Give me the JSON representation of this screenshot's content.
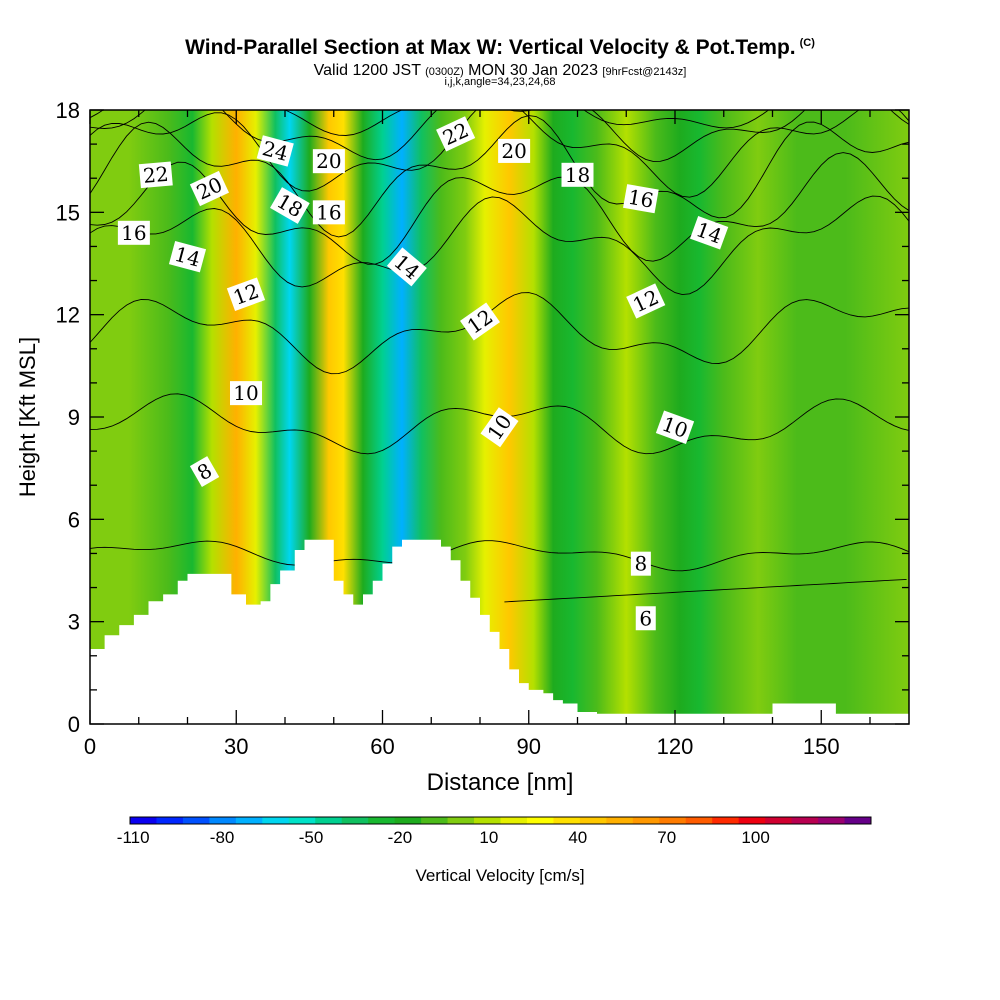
{
  "header": {
    "title": "Wind-Parallel Section at Max W: Vertical Velocity & Pot.Temp.",
    "title_tag": "(C)",
    "valid_main": "Valid 1200 JST",
    "valid_z": "(0300Z)",
    "valid_date": "MON 30 Jan 2023",
    "valid_fcst": "[9hrFcst@2143z]",
    "indices": "i,j,k,angle=34,23,24,68"
  },
  "chart_data": {
    "type": "heatmap",
    "xlabel": "Distance [nm]",
    "ylabel": "Height [Kft MSL]",
    "xlim": [
      0,
      168
    ],
    "ylim": [
      0,
      18
    ],
    "x_ticks": [
      "0",
      "30",
      "60",
      "90",
      "120",
      "150"
    ],
    "x_tick_values": [
      0,
      30,
      60,
      90,
      120,
      150
    ],
    "y_ticks": [
      "0",
      "3",
      "6",
      "9",
      "12",
      "15",
      "18"
    ],
    "y_tick_values": [
      0,
      3,
      6,
      9,
      12,
      15,
      18
    ],
    "colorbar": {
      "label": "Vertical Velocity [cm/s]",
      "tick_labels": [
        "-110",
        "-80",
        "-50",
        "-20",
        "10",
        "40",
        "70",
        "100"
      ],
      "tick_values": [
        -110,
        -80,
        -50,
        -20,
        10,
        40,
        70,
        100
      ],
      "range": [
        -120,
        130
      ],
      "step": 10,
      "colors": [
        "#0a00f0",
        "#0026ff",
        "#0050ff",
        "#0088ff",
        "#00b0ff",
        "#00d6f0",
        "#00e2c8",
        "#00d090",
        "#10c060",
        "#18b830",
        "#1eab1e",
        "#4cbb1a",
        "#80cc10",
        "#b4e000",
        "#e6f000",
        "#ffff00",
        "#ffe000",
        "#ffc800",
        "#ffb000",
        "#ff9800",
        "#ff7c00",
        "#ff5c00",
        "#ff2a00",
        "#ee0010",
        "#d00030",
        "#b80050",
        "#990070",
        "#660088"
      ]
    },
    "w_bands": [
      {
        "x": 0,
        "w": 0
      },
      {
        "x": 8,
        "w": 8
      },
      {
        "x": 16,
        "w": -8
      },
      {
        "x": 21,
        "w": -22
      },
      {
        "x": 25,
        "w": 12
      },
      {
        "x": 30,
        "w": 60
      },
      {
        "x": 34,
        "w": 25
      },
      {
        "x": 38,
        "w": -35
      },
      {
        "x": 41,
        "w": -70
      },
      {
        "x": 45,
        "w": -20
      },
      {
        "x": 49,
        "w": 55
      },
      {
        "x": 52,
        "w": 45
      },
      {
        "x": 56,
        "w": -20
      },
      {
        "x": 60,
        "w": -45
      },
      {
        "x": 64,
        "w": -75
      },
      {
        "x": 68,
        "w": -40
      },
      {
        "x": 72,
        "w": -10
      },
      {
        "x": 77,
        "w": 5
      },
      {
        "x": 81,
        "w": 25
      },
      {
        "x": 86,
        "w": 55
      },
      {
        "x": 91,
        "w": 15
      },
      {
        "x": 95,
        "w": -15
      },
      {
        "x": 99,
        "w": -28
      },
      {
        "x": 104,
        "w": -5
      },
      {
        "x": 110,
        "w": 12
      },
      {
        "x": 116,
        "w": -5
      },
      {
        "x": 121,
        "w": -18
      },
      {
        "x": 125,
        "w": -25
      },
      {
        "x": 130,
        "w": -8
      },
      {
        "x": 137,
        "w": 8
      },
      {
        "x": 145,
        "w": -5
      },
      {
        "x": 155,
        "w": -5
      },
      {
        "x": 168,
        "w": 2
      }
    ],
    "terrain": [
      [
        0,
        2.2
      ],
      [
        3,
        2.6
      ],
      [
        6,
        2.9
      ],
      [
        9,
        3.2
      ],
      [
        12,
        3.6
      ],
      [
        15,
        3.8
      ],
      [
        18,
        4.2
      ],
      [
        20,
        4.4
      ],
      [
        26,
        4.4
      ],
      [
        29,
        3.8
      ],
      [
        32,
        3.5
      ],
      [
        35,
        3.6
      ],
      [
        37,
        4.1
      ],
      [
        39,
        4.5
      ],
      [
        42,
        5.1
      ],
      [
        44,
        5.4
      ],
      [
        48,
        5.4
      ],
      [
        50,
        4.2
      ],
      [
        52,
        3.8
      ],
      [
        54,
        3.5
      ],
      [
        56,
        3.8
      ],
      [
        58,
        4.2
      ],
      [
        60,
        4.7
      ],
      [
        62,
        5.2
      ],
      [
        64,
        5.4
      ],
      [
        70,
        5.4
      ],
      [
        72,
        5.2
      ],
      [
        74,
        4.8
      ],
      [
        76,
        4.2
      ],
      [
        78,
        3.7
      ],
      [
        80,
        3.2
      ],
      [
        82,
        2.7
      ],
      [
        84,
        2.2
      ],
      [
        86,
        1.6
      ],
      [
        88,
        1.2
      ],
      [
        90,
        1.0
      ],
      [
        93,
        0.9
      ],
      [
        95,
        0.7
      ],
      [
        97,
        0.6
      ],
      [
        100,
        0.35
      ],
      [
        104,
        0.3
      ],
      [
        139,
        0.3
      ],
      [
        140,
        0.6
      ],
      [
        152,
        0.6
      ],
      [
        153,
        0.3
      ],
      [
        168,
        0.3
      ]
    ],
    "theta_contours": [
      {
        "level": 6,
        "label": "6",
        "base": 2.9,
        "slope": 0.08,
        "bend": 0.0,
        "xmin": 85
      },
      {
        "level": 8,
        "label": "8",
        "base": 5.0,
        "slope": -0.005,
        "bend": 0.3
      },
      {
        "level": 10,
        "label": "10",
        "base": 8.8,
        "slope": -0.01,
        "bend": 0.6
      },
      {
        "level": 12,
        "label": "12",
        "base": 11.4,
        "slope": 0.01,
        "bend": 0.8
      },
      {
        "level": 14,
        "label": "14",
        "base": 13.9,
        "slope": 0.015,
        "bend": 1.0
      },
      {
        "level": 16,
        "label": "16",
        "base": 14.8,
        "slope": 0.02,
        "bend": 1.1
      },
      {
        "level": 18,
        "label": "18",
        "base": 16.0,
        "slope": 0.015,
        "bend": 1.2
      },
      {
        "level": 20,
        "label": "20",
        "base": 16.8,
        "slope": 0.01,
        "bend": 1.0
      },
      {
        "level": 22,
        "label": "22",
        "base": 17.5,
        "slope": 0.008,
        "bend": 0.8
      },
      {
        "level": 24,
        "label": "24",
        "base": 18.0,
        "slope": 0.0,
        "bend": 0.5
      }
    ],
    "contour_labels": [
      {
        "text": "22",
        "x": 13.5,
        "y": 16.1,
        "angle": -5
      },
      {
        "text": "20",
        "x": 24.5,
        "y": 15.7,
        "angle": -25
      },
      {
        "text": "24",
        "x": 38,
        "y": 16.8,
        "angle": 15
      },
      {
        "text": "20",
        "x": 49,
        "y": 16.5,
        "angle": 0
      },
      {
        "text": "22",
        "x": 75,
        "y": 17.3,
        "angle": -25
      },
      {
        "text": "20",
        "x": 87,
        "y": 16.8,
        "angle": 0
      },
      {
        "text": "18",
        "x": 100,
        "y": 16.1,
        "angle": 0
      },
      {
        "text": "16",
        "x": 113,
        "y": 15.4,
        "angle": 10
      },
      {
        "text": "14",
        "x": 127,
        "y": 14.4,
        "angle": 20
      },
      {
        "text": "16",
        "x": 9,
        "y": 14.4,
        "angle": 0
      },
      {
        "text": "18",
        "x": 41,
        "y": 15.2,
        "angle": 30
      },
      {
        "text": "16",
        "x": 49,
        "y": 15.0,
        "angle": 0
      },
      {
        "text": "14",
        "x": 20,
        "y": 13.7,
        "angle": 15
      },
      {
        "text": "14",
        "x": 65,
        "y": 13.4,
        "angle": 40
      },
      {
        "text": "12",
        "x": 32,
        "y": 12.6,
        "angle": -20
      },
      {
        "text": "12",
        "x": 80,
        "y": 11.8,
        "angle": -35
      },
      {
        "text": "12",
        "x": 114,
        "y": 12.4,
        "angle": -25
      },
      {
        "text": "10",
        "x": 32,
        "y": 9.7,
        "angle": 0
      },
      {
        "text": "10",
        "x": 84,
        "y": 8.7,
        "angle": -55
      },
      {
        "text": "10",
        "x": 120,
        "y": 8.7,
        "angle": 20
      },
      {
        "text": "8",
        "x": 23.5,
        "y": 7.4,
        "angle": -30
      },
      {
        "text": "8",
        "x": 113,
        "y": 4.7,
        "angle": 0
      },
      {
        "text": "6",
        "x": 114,
        "y": 3.1,
        "angle": 0
      }
    ]
  }
}
